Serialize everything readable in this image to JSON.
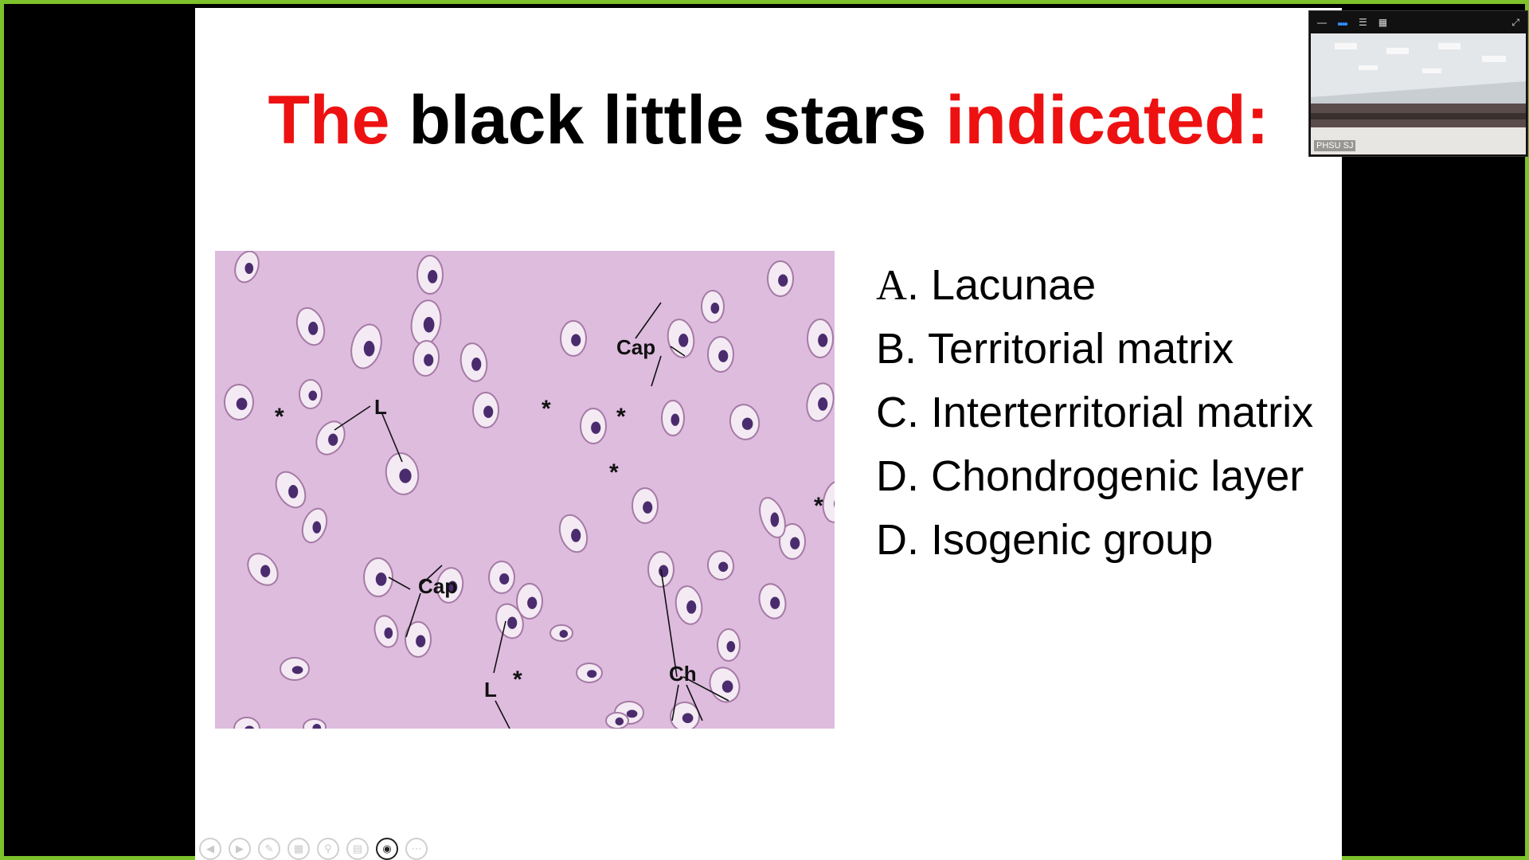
{
  "slide": {
    "title_parts": {
      "w1": "The",
      "w2": "black little stars",
      "w3": "indicated:"
    },
    "options": [
      {
        "letter": "A",
        "text": ". Lacunae"
      },
      {
        "letter": "B",
        "text": ". Territorial matrix"
      },
      {
        "letter": "C",
        "text": ". Interterritorial matrix"
      },
      {
        "letter": "D",
        "text": ". Chondrogenic layer"
      },
      {
        "letter": "D",
        "text": ".  Isogenic group"
      }
    ],
    "image_labels": {
      "cap_top": "Cap",
      "cap_mid": "Cap",
      "l_left": "L",
      "l_bottom": "L",
      "ch": "Ch",
      "star": "*"
    }
  },
  "colors": {
    "accent_red": "#ee1111",
    "frame_green": "#7dc12b",
    "tissue_pink": "#d9b3d8"
  },
  "camera": {
    "label": "PHSU SJ"
  },
  "toolbar_icons": [
    "prev-icon",
    "next-icon",
    "pen-icon",
    "slides-grid-icon",
    "zoom-icon",
    "subtitles-icon",
    "camera-icon",
    "more-icon"
  ]
}
